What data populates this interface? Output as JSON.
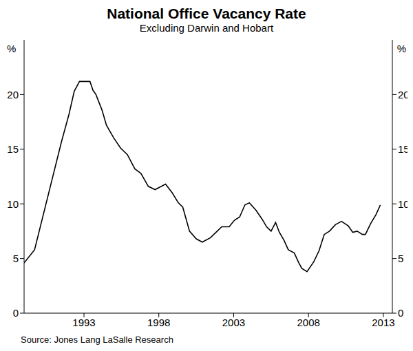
{
  "chart_data": {
    "type": "line",
    "title": "National Office Vacancy Rate",
    "subtitle": "Excluding Darwin and Hobart",
    "ylabel": "%",
    "source": "Source: Jones Lang LaSalle Research",
    "color": "#000000",
    "grid": false,
    "x": [
      1989.0,
      1989.7,
      1991.5,
      1992.0,
      1992.35,
      1992.7,
      1993.4,
      1993.6,
      1993.8,
      1994.2,
      1994.5,
      1995.0,
      1995.45,
      1995.9,
      1996.4,
      1996.8,
      1997.3,
      1997.75,
      1998.45,
      1998.9,
      1999.3,
      1999.6,
      2000.05,
      2000.5,
      2000.9,
      2001.45,
      2001.9,
      2002.2,
      2002.7,
      2003.05,
      2003.4,
      2003.75,
      2004.05,
      2004.5,
      2004.9,
      2005.2,
      2005.5,
      2005.8,
      2006.05,
      2006.35,
      2006.65,
      2007.05,
      2007.35,
      2007.55,
      2007.9,
      2008.35,
      2008.7,
      2009.05,
      2009.4,
      2009.8,
      2010.2,
      2010.65,
      2010.95,
      2011.25,
      2011.6,
      2011.8,
      2012.15,
      2012.5,
      2012.8
    ],
    "values": [
      4.6,
      5.8,
      15.7,
      18.2,
      20.3,
      21.2,
      21.2,
      20.4,
      20.0,
      18.6,
      17.2,
      16.0,
      15.1,
      14.5,
      13.2,
      12.8,
      11.6,
      11.3,
      11.8,
      11.0,
      10.1,
      9.7,
      7.5,
      6.8,
      6.5,
      6.9,
      7.5,
      7.9,
      7.9,
      8.5,
      8.8,
      9.9,
      10.1,
      9.4,
      8.6,
      7.9,
      7.5,
      8.3,
      7.4,
      6.7,
      5.8,
      5.5,
      4.6,
      4.1,
      3.8,
      4.7,
      5.7,
      7.2,
      7.5,
      8.1,
      8.4,
      8.0,
      7.4,
      7.5,
      7.2,
      7.2,
      8.2,
      9.0,
      9.9
    ],
    "xlim": [
      1989,
      2013.6
    ],
    "xticks": [
      1993,
      1998,
      2003,
      2008,
      2013
    ],
    "ylim": [
      0,
      25
    ],
    "yticks": [
      0,
      5,
      10,
      15,
      20
    ]
  }
}
